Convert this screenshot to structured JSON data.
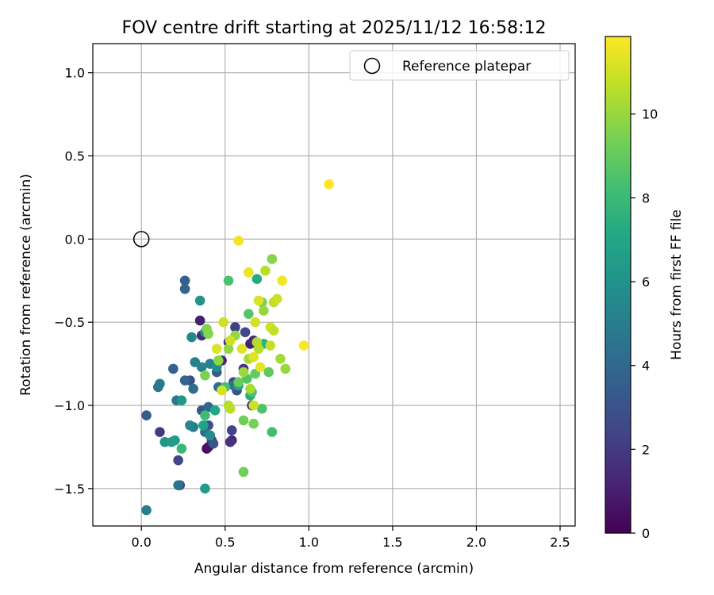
{
  "chart_data": {
    "type": "scatter",
    "title": "FOV centre drift starting at 2025/11/12 16:58:12",
    "xlabel": "Angular distance from reference (arcmin)",
    "ylabel": "Rotation from reference (arcmin)",
    "xlim": [
      -0.29,
      2.59
    ],
    "ylim": [
      -1.725,
      1.175
    ],
    "xticks": [
      0.0,
      0.5,
      1.0,
      1.5,
      2.0,
      2.5
    ],
    "xtick_labels": [
      "0.0",
      "0.5",
      "1.0",
      "1.5",
      "2.0",
      "2.5"
    ],
    "yticks": [
      -1.5,
      -1.0,
      -0.5,
      0.0,
      0.5,
      1.0
    ],
    "ytick_labels": [
      "−1.5",
      "−1.0",
      "−0.5",
      "0.0",
      "0.5",
      "1.0"
    ],
    "grid": true,
    "legend": {
      "placement": "top-right",
      "entries": [
        "Reference platepar"
      ]
    },
    "reference": {
      "name": "Reference platepar",
      "x": 0.0,
      "y": 0.0
    },
    "colorbar": {
      "label": "Hours from first FF file",
      "range": [
        0,
        11.85
      ],
      "colormap": "viridis",
      "ticks": [
        0,
        2,
        4,
        6,
        8,
        10
      ],
      "tick_labels": [
        "0",
        "2",
        "4",
        "6",
        "8",
        "10"
      ]
    },
    "points": [
      [
        0.39,
        -1.26,
        0.4
      ],
      [
        0.4,
        -1.25,
        0.6
      ],
      [
        0.54,
        -1.21,
        1.0
      ],
      [
        0.53,
        -1.22,
        1.8
      ],
      [
        0.35,
        -0.49,
        1.0
      ],
      [
        0.36,
        -0.58,
        1.5
      ],
      [
        0.48,
        -0.73,
        1.2
      ],
      [
        0.52,
        -0.62,
        1.6
      ],
      [
        0.65,
        -0.63,
        1.1
      ],
      [
        0.67,
        -0.61,
        1.4
      ],
      [
        0.61,
        -0.78,
        1.7
      ],
      [
        0.66,
        -1.0,
        1.3
      ],
      [
        0.11,
        -1.16,
        2.0
      ],
      [
        0.23,
        -1.48,
        2.3
      ],
      [
        0.22,
        -1.33,
        2.5
      ],
      [
        0.42,
        -1.21,
        2.2
      ],
      [
        0.54,
        -1.15,
        2.4
      ],
      [
        0.56,
        -0.53,
        2.3
      ],
      [
        0.62,
        -0.56,
        2.6
      ],
      [
        0.29,
        -0.85,
        2.8
      ],
      [
        0.4,
        -1.12,
        2.9
      ],
      [
        0.55,
        -0.86,
        2.7
      ],
      [
        0.57,
        -0.91,
        3.0
      ],
      [
        0.36,
        -1.03,
        3.2
      ],
      [
        0.43,
        -1.23,
        3.1
      ],
      [
        0.45,
        -0.8,
        3.3
      ],
      [
        0.03,
        -1.06,
        3.4
      ],
      [
        0.26,
        -0.25,
        3.6
      ],
      [
        0.26,
        -0.3,
        3.8
      ],
      [
        0.19,
        -0.78,
        3.7
      ],
      [
        0.26,
        -0.85,
        3.9
      ],
      [
        0.4,
        -1.01,
        4.0
      ],
      [
        0.31,
        -0.9,
        4.1
      ],
      [
        0.38,
        -1.16,
        4.2
      ],
      [
        0.46,
        -0.89,
        4.3
      ],
      [
        0.55,
        -0.88,
        4.4
      ],
      [
        0.1,
        -0.89,
        4.6
      ],
      [
        0.11,
        -0.87,
        4.8
      ],
      [
        0.21,
        -0.97,
        4.7
      ],
      [
        0.03,
        -1.63,
        5.0
      ],
      [
        0.22,
        -1.48,
        4.5
      ],
      [
        0.31,
        -1.13,
        4.9
      ],
      [
        0.32,
        -0.74,
        5.1
      ],
      [
        0.36,
        -0.77,
        5.3
      ],
      [
        0.41,
        -0.75,
        5.2
      ],
      [
        0.3,
        -0.59,
        5.5
      ],
      [
        0.38,
        -0.56,
        5.6
      ],
      [
        0.29,
        -1.12,
        5.4
      ],
      [
        0.41,
        -1.18,
        5.7
      ],
      [
        0.45,
        -0.77,
        5.8
      ],
      [
        0.14,
        -1.22,
        6.2
      ],
      [
        0.18,
        -1.22,
        6.4
      ],
      [
        0.24,
        -0.97,
        6.3
      ],
      [
        0.35,
        -0.37,
        6.1
      ],
      [
        0.38,
        -1.5,
        6.5
      ],
      [
        0.2,
        -1.21,
        6.6
      ],
      [
        0.37,
        -1.12,
        6.8
      ],
      [
        0.44,
        -1.03,
        7.0
      ],
      [
        0.58,
        -0.88,
        7.1
      ],
      [
        0.65,
        -0.94,
        7.3
      ],
      [
        0.69,
        -0.24,
        7.2
      ],
      [
        0.73,
        -0.63,
        7.5
      ],
      [
        0.24,
        -1.26,
        7.9
      ],
      [
        0.38,
        -1.06,
        8.1
      ],
      [
        0.5,
        -0.89,
        8.3
      ],
      [
        0.63,
        -0.84,
        8.6
      ],
      [
        0.66,
        -0.92,
        8.4
      ],
      [
        0.72,
        -1.02,
        8.5
      ],
      [
        0.78,
        -1.16,
        8.2
      ],
      [
        0.52,
        -0.25,
        8.4
      ],
      [
        0.64,
        -0.45,
        8.7
      ],
      [
        0.76,
        -0.8,
        8.9
      ],
      [
        0.68,
        -0.81,
        9.0
      ],
      [
        0.58,
        -0.86,
        9.1
      ],
      [
        0.61,
        -1.4,
        9.3
      ],
      [
        0.61,
        -1.09,
        9.2
      ],
      [
        0.67,
        -1.11,
        9.4
      ],
      [
        0.38,
        -0.82,
        9.5
      ],
      [
        0.39,
        -0.54,
        9.6
      ],
      [
        0.4,
        -0.57,
        9.7
      ],
      [
        0.46,
        -0.73,
        9.8
      ],
      [
        0.52,
        -0.66,
        9.9
      ],
      [
        0.56,
        -0.58,
        10.0
      ],
      [
        0.61,
        -0.8,
        10.1
      ],
      [
        0.64,
        -0.72,
        10.2
      ],
      [
        0.65,
        -0.9,
        10.3
      ],
      [
        0.69,
        -0.62,
        10.4
      ],
      [
        0.7,
        -0.66,
        10.5
      ],
      [
        0.72,
        -0.38,
        9.4
      ],
      [
        0.73,
        -0.43,
        10.0
      ],
      [
        0.74,
        -0.19,
        10.6
      ],
      [
        0.78,
        -0.12,
        9.7
      ],
      [
        0.77,
        -0.64,
        10.8
      ],
      [
        0.79,
        -0.38,
        10.7
      ],
      [
        0.81,
        -0.36,
        10.9
      ],
      [
        0.83,
        -0.72,
        10.2
      ],
      [
        0.86,
        -0.78,
        10.0
      ],
      [
        0.52,
        -1.0,
        10.5
      ],
      [
        0.53,
        -1.02,
        10.6
      ],
      [
        0.67,
        -1.0,
        10.9
      ],
      [
        0.49,
        -0.5,
        11.0
      ],
      [
        0.45,
        -0.66,
        11.2
      ],
      [
        0.48,
        -0.91,
        11.1
      ],
      [
        0.53,
        -0.61,
        11.0
      ],
      [
        0.6,
        -0.66,
        11.3
      ],
      [
        0.68,
        -0.5,
        11.1
      ],
      [
        0.7,
        -0.37,
        11.2
      ],
      [
        0.71,
        -0.77,
        11.4
      ],
      [
        0.77,
        -0.53,
        11.0
      ],
      [
        0.79,
        -0.55,
        10.8
      ],
      [
        0.58,
        -0.01,
        11.6
      ],
      [
        0.64,
        -0.2,
        11.5
      ],
      [
        0.84,
        -0.25,
        11.7
      ],
      [
        0.97,
        -0.64,
        11.8
      ],
      [
        1.12,
        0.33,
        11.85
      ],
      [
        0.67,
        -0.71,
        11.3
      ]
    ]
  }
}
